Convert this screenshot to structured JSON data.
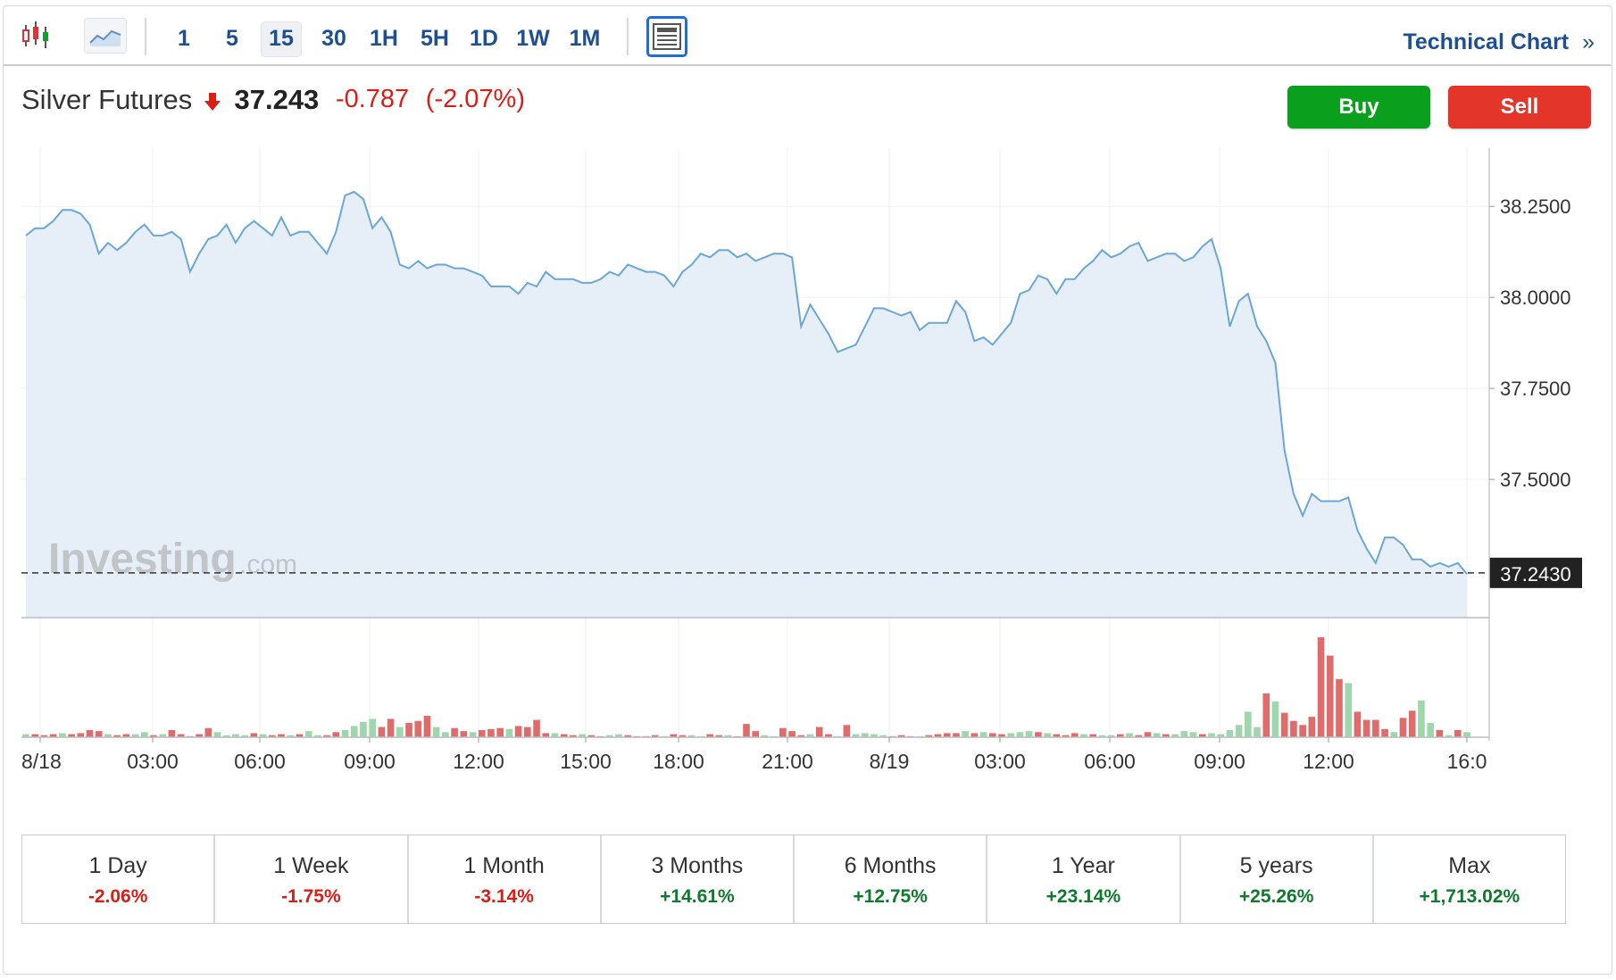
{
  "toolbar": {
    "chart_type_icons": [
      "candlestick-icon",
      "area-chart-icon"
    ],
    "timeframes": [
      "1",
      "5",
      "15",
      "30",
      "1H",
      "5H",
      "1D",
      "1W",
      "1M"
    ],
    "active_timeframe": "15",
    "layout_icon": "layout-icon",
    "technical_chart_label": "Technical Chart",
    "technical_chart_arrow": "»"
  },
  "instrument": {
    "name": "Silver Futures",
    "direction_icon": "down-arrow-icon",
    "price": "37.243",
    "change": "-0.787",
    "change_pct": "(-2.07%)"
  },
  "actions": {
    "buy_label": "Buy",
    "sell_label": "Sell"
  },
  "colors": {
    "line": "#6aa7d8",
    "area": "#e6eef7",
    "vol_up": "#9fd6ab",
    "vol_down": "#e06b6b",
    "positive": "#0e7a2d",
    "negative": "#d91e18",
    "buy": "#0aa01e",
    "sell": "#e4352a"
  },
  "watermark": {
    "brand": "Investing",
    "suffix": ".com"
  },
  "chart_data": {
    "type": "area",
    "title": "Silver Futures",
    "x_labels": [
      "8/18",
      "03:00",
      "06:00",
      "09:00",
      "12:00",
      "15:00",
      "18:00",
      "21:00",
      "8/19",
      "03:00",
      "06:00",
      "09:00",
      "12:00",
      "16:0"
    ],
    "y_ticks": [
      "38.2500",
      "38.0000",
      "37.7500",
      "37.5000"
    ],
    "y_tick_values": [
      38.25,
      38.0,
      37.75,
      37.5
    ],
    "ylim": [
      37.12,
      38.41
    ],
    "last_price_label": "37.2430",
    "last_price": 37.243,
    "grid": true,
    "series": [
      {
        "values": [
          38.17,
          38.19,
          38.19,
          38.21,
          38.24,
          38.24,
          38.23,
          38.2,
          38.12,
          38.15,
          38.13,
          38.15,
          38.18,
          38.2,
          38.17,
          38.17,
          38.18,
          38.16,
          38.07,
          38.12,
          38.16,
          38.17,
          38.2,
          38.15,
          38.19,
          38.21,
          38.19,
          38.17,
          38.22,
          38.17,
          38.18,
          38.18,
          38.15,
          38.12,
          38.18,
          38.28,
          38.29,
          38.27,
          38.19,
          38.22,
          38.18,
          38.09,
          38.08,
          38.1,
          38.08,
          38.09,
          38.09,
          38.08,
          38.08,
          38.07,
          38.06,
          38.03,
          38.03,
          38.03,
          38.01,
          38.04,
          38.03,
          38.07,
          38.05,
          38.05,
          38.05,
          38.04,
          38.04,
          38.05,
          38.07,
          38.06,
          38.09,
          38.08,
          38.07,
          38.07,
          38.06,
          38.03,
          38.07,
          38.09,
          38.12,
          38.11,
          38.13,
          38.13,
          38.11,
          38.12,
          38.1,
          38.11,
          38.12,
          38.12,
          38.11,
          37.92,
          37.98,
          37.94,
          37.9,
          37.85,
          37.86,
          37.87,
          37.92,
          37.97,
          37.97,
          37.96,
          37.95,
          37.96,
          37.91,
          37.93,
          37.93,
          37.93,
          37.99,
          37.96,
          37.88,
          37.89,
          37.87,
          37.9,
          37.93,
          38.01,
          38.02,
          38.06,
          38.05,
          38.01,
          38.05,
          38.05,
          38.08,
          38.1,
          38.13,
          38.11,
          38.12,
          38.14,
          38.15,
          38.1,
          38.11,
          38.12,
          38.12,
          38.1,
          38.11,
          38.14,
          38.16,
          38.08,
          37.92,
          37.99,
          38.01,
          37.92,
          37.88,
          37.82,
          37.58,
          37.46,
          37.4,
          37.46,
          37.44,
          37.44,
          37.44,
          37.45,
          37.36,
          37.31,
          37.27,
          37.34,
          37.34,
          37.32,
          37.28,
          37.28,
          37.26,
          37.27,
          37.26,
          37.27,
          37.24
        ]
      }
    ],
    "volume": [
      {
        "v": 3,
        "d": 0
      },
      {
        "v": 3,
        "d": 1
      },
      {
        "v": 2,
        "d": 1
      },
      {
        "v": 3,
        "d": 1
      },
      {
        "v": 4,
        "d": 0
      },
      {
        "v": 3,
        "d": 1
      },
      {
        "v": 4,
        "d": 1
      },
      {
        "v": 7,
        "d": 1
      },
      {
        "v": 6,
        "d": 1
      },
      {
        "v": 3,
        "d": 0
      },
      {
        "v": 2,
        "d": 1
      },
      {
        "v": 3,
        "d": 1
      },
      {
        "v": 3,
        "d": 0
      },
      {
        "v": 5,
        "d": 0
      },
      {
        "v": 2,
        "d": 1
      },
      {
        "v": 3,
        "d": 0
      },
      {
        "v": 7,
        "d": 1
      },
      {
        "v": 3,
        "d": 1
      },
      {
        "v": 1,
        "d": 1
      },
      {
        "v": 3,
        "d": 1
      },
      {
        "v": 9,
        "d": 1
      },
      {
        "v": 5,
        "d": 0
      },
      {
        "v": 2,
        "d": 0
      },
      {
        "v": 3,
        "d": 0
      },
      {
        "v": 2,
        "d": 0
      },
      {
        "v": 4,
        "d": 1
      },
      {
        "v": 3,
        "d": 0
      },
      {
        "v": 2,
        "d": 1
      },
      {
        "v": 3,
        "d": 1
      },
      {
        "v": 2,
        "d": 0
      },
      {
        "v": 3,
        "d": 1
      },
      {
        "v": 6,
        "d": 0
      },
      {
        "v": 2,
        "d": 0
      },
      {
        "v": 2,
        "d": 1
      },
      {
        "v": 5,
        "d": 1
      },
      {
        "v": 7,
        "d": 0
      },
      {
        "v": 11,
        "d": 0
      },
      {
        "v": 15,
        "d": 0
      },
      {
        "v": 18,
        "d": 0
      },
      {
        "v": 10,
        "d": 1
      },
      {
        "v": 18,
        "d": 1
      },
      {
        "v": 10,
        "d": 0
      },
      {
        "v": 14,
        "d": 1
      },
      {
        "v": 16,
        "d": 1
      },
      {
        "v": 21,
        "d": 1
      },
      {
        "v": 10,
        "d": 0
      },
      {
        "v": 5,
        "d": 0
      },
      {
        "v": 9,
        "d": 1
      },
      {
        "v": 6,
        "d": 1
      },
      {
        "v": 5,
        "d": 0
      },
      {
        "v": 7,
        "d": 1
      },
      {
        "v": 8,
        "d": 1
      },
      {
        "v": 9,
        "d": 1
      },
      {
        "v": 8,
        "d": 0
      },
      {
        "v": 11,
        "d": 1
      },
      {
        "v": 10,
        "d": 1
      },
      {
        "v": 17,
        "d": 1
      },
      {
        "v": 4,
        "d": 1
      },
      {
        "v": 4,
        "d": 0
      },
      {
        "v": 3,
        "d": 1
      },
      {
        "v": 2,
        "d": 1
      },
      {
        "v": 3,
        "d": 0
      },
      {
        "v": 2,
        "d": 1
      },
      {
        "v": 1,
        "d": 1
      },
      {
        "v": 2,
        "d": 0
      },
      {
        "v": 3,
        "d": 0
      },
      {
        "v": 2,
        "d": 1
      },
      {
        "v": 1,
        "d": 1
      },
      {
        "v": 1,
        "d": 1
      },
      {
        "v": 2,
        "d": 1
      },
      {
        "v": 1,
        "d": 0
      },
      {
        "v": 3,
        "d": 1
      },
      {
        "v": 2,
        "d": 1
      },
      {
        "v": 2,
        "d": 0
      },
      {
        "v": 1,
        "d": 0
      },
      {
        "v": 3,
        "d": 1
      },
      {
        "v": 2,
        "d": 1
      },
      {
        "v": 2,
        "d": 0
      },
      {
        "v": 1,
        "d": 1
      },
      {
        "v": 13,
        "d": 1
      },
      {
        "v": 6,
        "d": 1
      },
      {
        "v": 2,
        "d": 0
      },
      {
        "v": 1,
        "d": 0
      },
      {
        "v": 9,
        "d": 1
      },
      {
        "v": 6,
        "d": 1
      },
      {
        "v": 2,
        "d": 1
      },
      {
        "v": 3,
        "d": 0
      },
      {
        "v": 10,
        "d": 1
      },
      {
        "v": 3,
        "d": 1
      },
      {
        "v": 1,
        "d": 0
      },
      {
        "v": 12,
        "d": 1
      },
      {
        "v": 3,
        "d": 0
      },
      {
        "v": 4,
        "d": 0
      },
      {
        "v": 3,
        "d": 0
      },
      {
        "v": 2,
        "d": 0
      },
      {
        "v": 1,
        "d": 1
      },
      {
        "v": 2,
        "d": 1
      },
      {
        "v": 1,
        "d": 1
      },
      {
        "v": 1,
        "d": 0
      },
      {
        "v": 2,
        "d": 1
      },
      {
        "v": 3,
        "d": 1
      },
      {
        "v": 4,
        "d": 1
      },
      {
        "v": 4,
        "d": 1
      },
      {
        "v": 6,
        "d": 0
      },
      {
        "v": 4,
        "d": 1
      },
      {
        "v": 5,
        "d": 0
      },
      {
        "v": 4,
        "d": 1
      },
      {
        "v": 3,
        "d": 1
      },
      {
        "v": 4,
        "d": 0
      },
      {
        "v": 5,
        "d": 0
      },
      {
        "v": 6,
        "d": 0
      },
      {
        "v": 5,
        "d": 1
      },
      {
        "v": 4,
        "d": 0
      },
      {
        "v": 3,
        "d": 1
      },
      {
        "v": 2,
        "d": 1
      },
      {
        "v": 4,
        "d": 1
      },
      {
        "v": 3,
        "d": 0
      },
      {
        "v": 3,
        "d": 1
      },
      {
        "v": 2,
        "d": 0
      },
      {
        "v": 2,
        "d": 0
      },
      {
        "v": 3,
        "d": 1
      },
      {
        "v": 4,
        "d": 0
      },
      {
        "v": 2,
        "d": 1
      },
      {
        "v": 5,
        "d": 1
      },
      {
        "v": 4,
        "d": 0
      },
      {
        "v": 3,
        "d": 1
      },
      {
        "v": 3,
        "d": 0
      },
      {
        "v": 6,
        "d": 0
      },
      {
        "v": 5,
        "d": 0
      },
      {
        "v": 3,
        "d": 1
      },
      {
        "v": 4,
        "d": 0
      },
      {
        "v": 3,
        "d": 0
      },
      {
        "v": 7,
        "d": 0
      },
      {
        "v": 12,
        "d": 0
      },
      {
        "v": 25,
        "d": 0
      },
      {
        "v": 10,
        "d": 0
      },
      {
        "v": 43,
        "d": 1
      },
      {
        "v": 35,
        "d": 0
      },
      {
        "v": 24,
        "d": 1
      },
      {
        "v": 16,
        "d": 1
      },
      {
        "v": 12,
        "d": 1
      },
      {
        "v": 20,
        "d": 1
      },
      {
        "v": 98,
        "d": 1
      },
      {
        "v": 80,
        "d": 1
      },
      {
        "v": 57,
        "d": 1
      },
      {
        "v": 53,
        "d": 0
      },
      {
        "v": 25,
        "d": 1
      },
      {
        "v": 17,
        "d": 1
      },
      {
        "v": 17,
        "d": 1
      },
      {
        "v": 8,
        "d": 1
      },
      {
        "v": 5,
        "d": 0
      },
      {
        "v": 19,
        "d": 1
      },
      {
        "v": 26,
        "d": 1
      },
      {
        "v": 36,
        "d": 0
      },
      {
        "v": 14,
        "d": 0
      },
      {
        "v": 7,
        "d": 1
      },
      {
        "v": 2,
        "d": 0
      },
      {
        "v": 7,
        "d": 1
      },
      {
        "v": 5,
        "d": 0
      }
    ]
  },
  "performance": [
    {
      "label": "1 Day",
      "value": "-2.06%",
      "dir": "down"
    },
    {
      "label": "1 Week",
      "value": "-1.75%",
      "dir": "down"
    },
    {
      "label": "1 Month",
      "value": "-3.14%",
      "dir": "down"
    },
    {
      "label": "3 Months",
      "value": "+14.61%",
      "dir": "up"
    },
    {
      "label": "6 Months",
      "value": "+12.75%",
      "dir": "up"
    },
    {
      "label": "1 Year",
      "value": "+23.14%",
      "dir": "up"
    },
    {
      "label": "5 years",
      "value": "+25.26%",
      "dir": "up"
    },
    {
      "label": "Max",
      "value": "+1,713.02%",
      "dir": "up"
    }
  ]
}
